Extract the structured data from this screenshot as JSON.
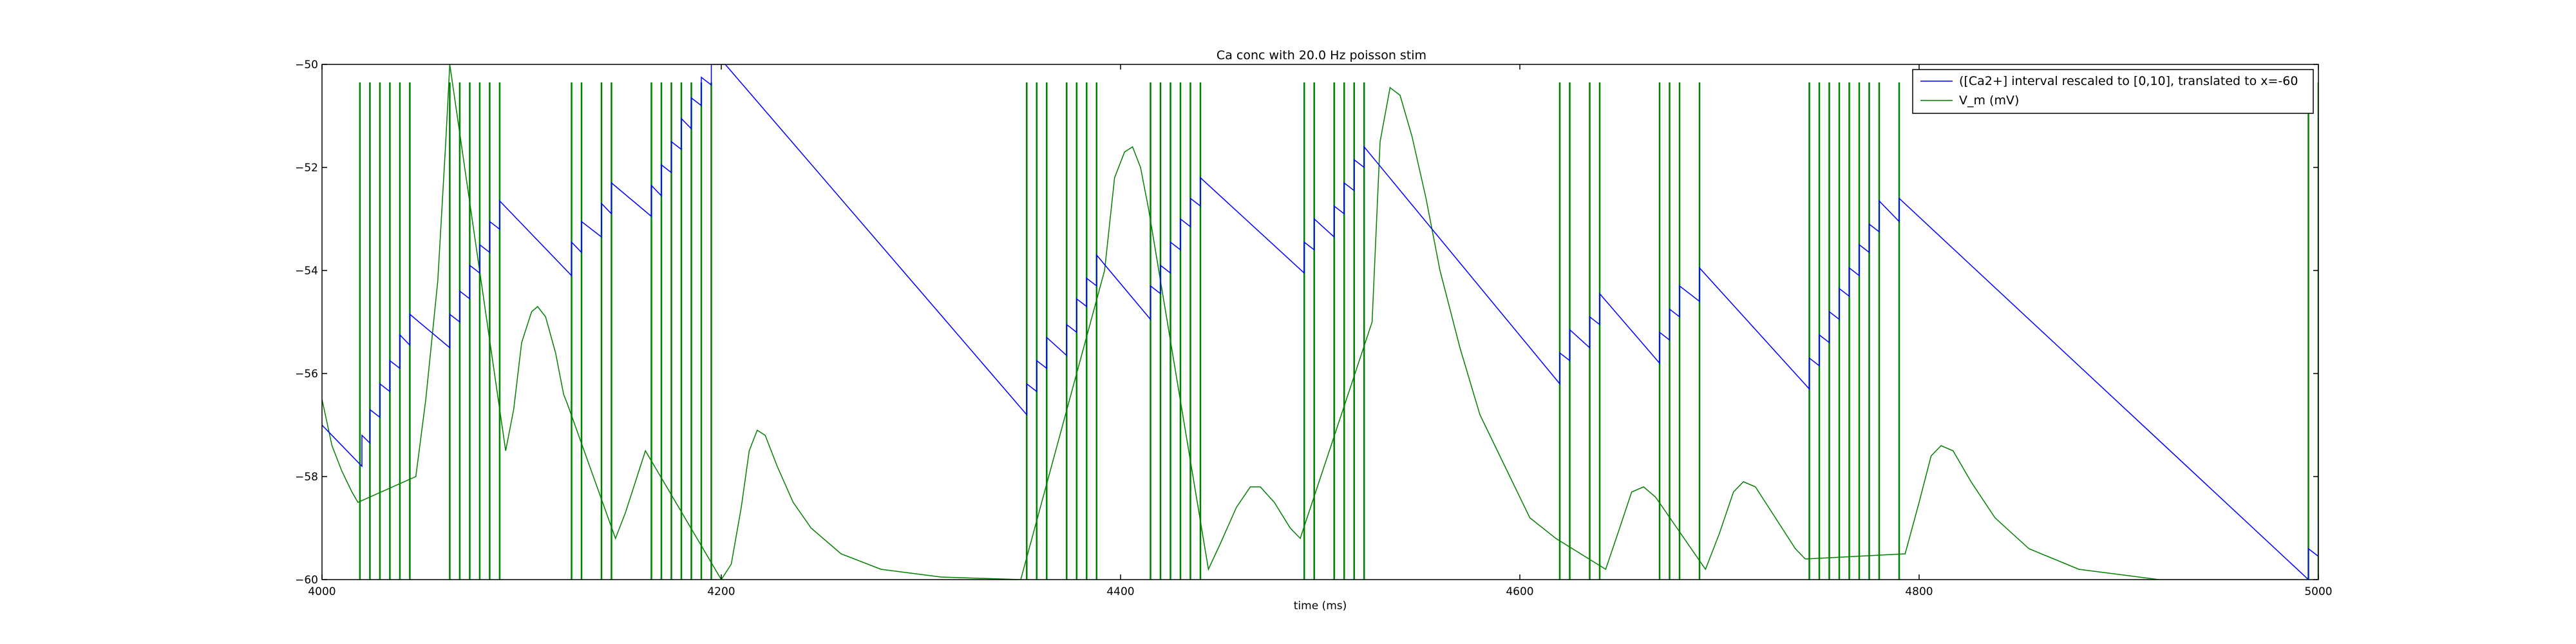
{
  "chart_data": {
    "type": "line",
    "title": "Ca conc with 20.0 Hz poisson stim",
    "xlabel": "time (ms)",
    "ylabel": "",
    "xlim": [
      4000,
      5000
    ],
    "ylim": [
      -60,
      -50
    ],
    "xticks": [
      4000,
      4200,
      4400,
      4600,
      4800,
      5000
    ],
    "yticks": [
      -60,
      -58,
      -56,
      -54,
      -52,
      -50
    ],
    "grid": false,
    "legend_position": "top-right",
    "series": [
      {
        "name": "([Ca2+] interval rescaled to [0,10], translated to x=-60",
        "color": "#0000ff",
        "points": [
          [
            4000,
            -57.0
          ],
          [
            4020,
            -57.8
          ],
          [
            4020,
            -57.2
          ],
          [
            4024,
            -57.35
          ],
          [
            4024,
            -56.7
          ],
          [
            4029,
            -56.85
          ],
          [
            4029,
            -56.2
          ],
          [
            4034,
            -56.35
          ],
          [
            4034,
            -55.75
          ],
          [
            4039,
            -55.9
          ],
          [
            4039,
            -55.25
          ],
          [
            4044,
            -55.45
          ],
          [
            4044,
            -54.85
          ],
          [
            4064,
            -55.5
          ],
          [
            4064,
            -54.85
          ],
          [
            4069,
            -55.0
          ],
          [
            4069,
            -54.4
          ],
          [
            4074,
            -54.55
          ],
          [
            4074,
            -53.9
          ],
          [
            4079,
            -54.05
          ],
          [
            4079,
            -53.5
          ],
          [
            4084,
            -53.65
          ],
          [
            4084,
            -53.05
          ],
          [
            4089,
            -53.2
          ],
          [
            4089,
            -52.65
          ],
          [
            4125,
            -54.1
          ],
          [
            4125,
            -53.45
          ],
          [
            4130,
            -53.65
          ],
          [
            4130,
            -53.05
          ],
          [
            4140,
            -53.35
          ],
          [
            4140,
            -52.7
          ],
          [
            4145,
            -52.9
          ],
          [
            4145,
            -52.3
          ],
          [
            4165,
            -52.95
          ],
          [
            4165,
            -52.35
          ],
          [
            4170,
            -52.55
          ],
          [
            4170,
            -51.95
          ],
          [
            4175,
            -52.1
          ],
          [
            4175,
            -51.5
          ],
          [
            4180,
            -51.65
          ],
          [
            4180,
            -51.05
          ],
          [
            4185,
            -51.25
          ],
          [
            4185,
            -50.65
          ],
          [
            4190,
            -50.8
          ],
          [
            4190,
            -50.25
          ],
          [
            4195,
            -50.4
          ],
          [
            4195,
            -50.0
          ],
          [
            4202,
            -50.0
          ],
          [
            4353,
            -56.8
          ],
          [
            4353,
            -56.2
          ],
          [
            4358,
            -56.35
          ],
          [
            4358,
            -55.75
          ],
          [
            4363,
            -55.9
          ],
          [
            4363,
            -55.3
          ],
          [
            4373,
            -55.65
          ],
          [
            4373,
            -55.05
          ],
          [
            4378,
            -55.2
          ],
          [
            4378,
            -54.55
          ],
          [
            4383,
            -54.7
          ],
          [
            4383,
            -54.15
          ],
          [
            4388,
            -54.3
          ],
          [
            4388,
            -53.7
          ],
          [
            4415,
            -54.95
          ],
          [
            4415,
            -54.3
          ],
          [
            4420,
            -54.45
          ],
          [
            4420,
            -53.9
          ],
          [
            4425,
            -54.05
          ],
          [
            4425,
            -53.45
          ],
          [
            4430,
            -53.6
          ],
          [
            4430,
            -53.0
          ],
          [
            4435,
            -53.15
          ],
          [
            4435,
            -52.6
          ],
          [
            4440,
            -52.75
          ],
          [
            4440,
            -52.2
          ],
          [
            4492,
            -54.05
          ],
          [
            4492,
            -53.45
          ],
          [
            4497,
            -53.6
          ],
          [
            4497,
            -53.0
          ],
          [
            4507,
            -53.35
          ],
          [
            4507,
            -52.75
          ],
          [
            4512,
            -52.9
          ],
          [
            4512,
            -52.3
          ],
          [
            4517,
            -52.45
          ],
          [
            4517,
            -51.85
          ],
          [
            4522,
            -52.0
          ],
          [
            4522,
            -51.6
          ],
          [
            4620,
            -56.2
          ],
          [
            4620,
            -55.6
          ],
          [
            4625,
            -55.75
          ],
          [
            4625,
            -55.15
          ],
          [
            4635,
            -55.5
          ],
          [
            4635,
            -54.9
          ],
          [
            4640,
            -55.05
          ],
          [
            4640,
            -54.45
          ],
          [
            4670,
            -55.8
          ],
          [
            4670,
            -55.2
          ],
          [
            4675,
            -55.35
          ],
          [
            4675,
            -54.75
          ],
          [
            4680,
            -54.9
          ],
          [
            4680,
            -54.3
          ],
          [
            4690,
            -54.6
          ],
          [
            4690,
            -53.95
          ],
          [
            4745,
            -56.3
          ],
          [
            4745,
            -55.7
          ],
          [
            4750,
            -55.85
          ],
          [
            4750,
            -55.25
          ],
          [
            4755,
            -55.4
          ],
          [
            4755,
            -54.8
          ],
          [
            4760,
            -54.95
          ],
          [
            4760,
            -54.35
          ],
          [
            4765,
            -54.5
          ],
          [
            4765,
            -53.95
          ],
          [
            4770,
            -54.1
          ],
          [
            4770,
            -53.5
          ],
          [
            4775,
            -53.65
          ],
          [
            4775,
            -53.1
          ],
          [
            4780,
            -53.25
          ],
          [
            4780,
            -52.65
          ],
          [
            4790,
            -53.05
          ],
          [
            4790,
            -52.6
          ],
          [
            4995,
            -60.0
          ],
          [
            4995,
            -59.4
          ],
          [
            5000,
            -59.55
          ],
          [
            5000,
            -58.85
          ]
        ]
      },
      {
        "name": "V_m (mV)",
        "color": "#008000",
        "spikes": [
          4019,
          4024,
          4029,
          4034,
          4039,
          4044,
          4064,
          4069,
          4074,
          4079,
          4084,
          4089,
          4125,
          4130,
          4140,
          4145,
          4165,
          4170,
          4175,
          4180,
          4185,
          4190,
          4195,
          4353,
          4358,
          4363,
          4373,
          4378,
          4383,
          4388,
          4415,
          4420,
          4425,
          4430,
          4435,
          4440,
          4492,
          4497,
          4507,
          4512,
          4517,
          4522,
          4620,
          4625,
          4635,
          4640,
          4670,
          4675,
          4680,
          4690,
          4745,
          4750,
          4755,
          4760,
          4765,
          4770,
          4775,
          4780,
          4790,
          4995,
          5000
        ],
        "points": [
          [
            4000,
            -56.5
          ],
          [
            4005,
            -57.4
          ],
          [
            4010,
            -57.9
          ],
          [
            4015,
            -58.3
          ],
          [
            4018,
            -58.5
          ],
          [
            4047,
            -58.0
          ],
          [
            4052,
            -56.5
          ],
          [
            4058,
            -54.2
          ],
          [
            4062,
            -51.5
          ],
          [
            4064,
            -50.0
          ],
          [
            4092,
            -57.5
          ],
          [
            4096,
            -56.7
          ],
          [
            4100,
            -55.4
          ],
          [
            4105,
            -54.8
          ],
          [
            4108,
            -54.7
          ],
          [
            4112,
            -54.9
          ],
          [
            4117,
            -55.6
          ],
          [
            4121,
            -56.4
          ],
          [
            4123,
            -56.6
          ],
          [
            4147,
            -59.2
          ],
          [
            4152,
            -58.7
          ],
          [
            4157,
            -58.1
          ],
          [
            4162,
            -57.5
          ],
          [
            4200,
            -60.0
          ],
          [
            4205,
            -59.7
          ],
          [
            4210,
            -58.6
          ],
          [
            4214,
            -57.5
          ],
          [
            4218,
            -57.1
          ],
          [
            4222,
            -57.2
          ],
          [
            4228,
            -57.8
          ],
          [
            4236,
            -58.5
          ],
          [
            4245,
            -59.0
          ],
          [
            4260,
            -59.5
          ],
          [
            4280,
            -59.8
          ],
          [
            4310,
            -59.95
          ],
          [
            4350,
            -60.0
          ],
          [
            4392,
            -54.0
          ],
          [
            4397,
            -52.2
          ],
          [
            4402,
            -51.7
          ],
          [
            4406,
            -51.6
          ],
          [
            4410,
            -52.0
          ],
          [
            4413,
            -52.6
          ],
          [
            4414,
            -52.8
          ],
          [
            4444,
            -59.8
          ],
          [
            4450,
            -59.3
          ],
          [
            4458,
            -58.6
          ],
          [
            4465,
            -58.2
          ],
          [
            4470,
            -58.2
          ],
          [
            4477,
            -58.5
          ],
          [
            4485,
            -59.0
          ],
          [
            4490,
            -59.2
          ],
          [
            4526,
            -55.0
          ],
          [
            4530,
            -51.5
          ],
          [
            4535,
            -50.45
          ],
          [
            4540,
            -50.6
          ],
          [
            4546,
            -51.4
          ],
          [
            4553,
            -52.6
          ],
          [
            4560,
            -54.0
          ],
          [
            4570,
            -55.5
          ],
          [
            4580,
            -56.8
          ],
          [
            4595,
            -58.0
          ],
          [
            4605,
            -58.8
          ],
          [
            4618,
            -59.2
          ],
          [
            4643,
            -59.8
          ],
          [
            4650,
            -59.0
          ],
          [
            4656,
            -58.3
          ],
          [
            4662,
            -58.2
          ],
          [
            4668,
            -58.4
          ],
          [
            4693,
            -59.8
          ],
          [
            4700,
            -59.1
          ],
          [
            4707,
            -58.3
          ],
          [
            4712,
            -58.1
          ],
          [
            4718,
            -58.2
          ],
          [
            4728,
            -58.8
          ],
          [
            4738,
            -59.4
          ],
          [
            4743,
            -59.6
          ],
          [
            4793,
            -59.5
          ],
          [
            4800,
            -58.5
          ],
          [
            4806,
            -57.6
          ],
          [
            4811,
            -57.4
          ],
          [
            4817,
            -57.5
          ],
          [
            4826,
            -58.1
          ],
          [
            4838,
            -58.8
          ],
          [
            4855,
            -59.4
          ],
          [
            4880,
            -59.8
          ],
          [
            4920,
            -60.0
          ],
          [
            4990,
            -60.0
          ]
        ]
      }
    ]
  }
}
